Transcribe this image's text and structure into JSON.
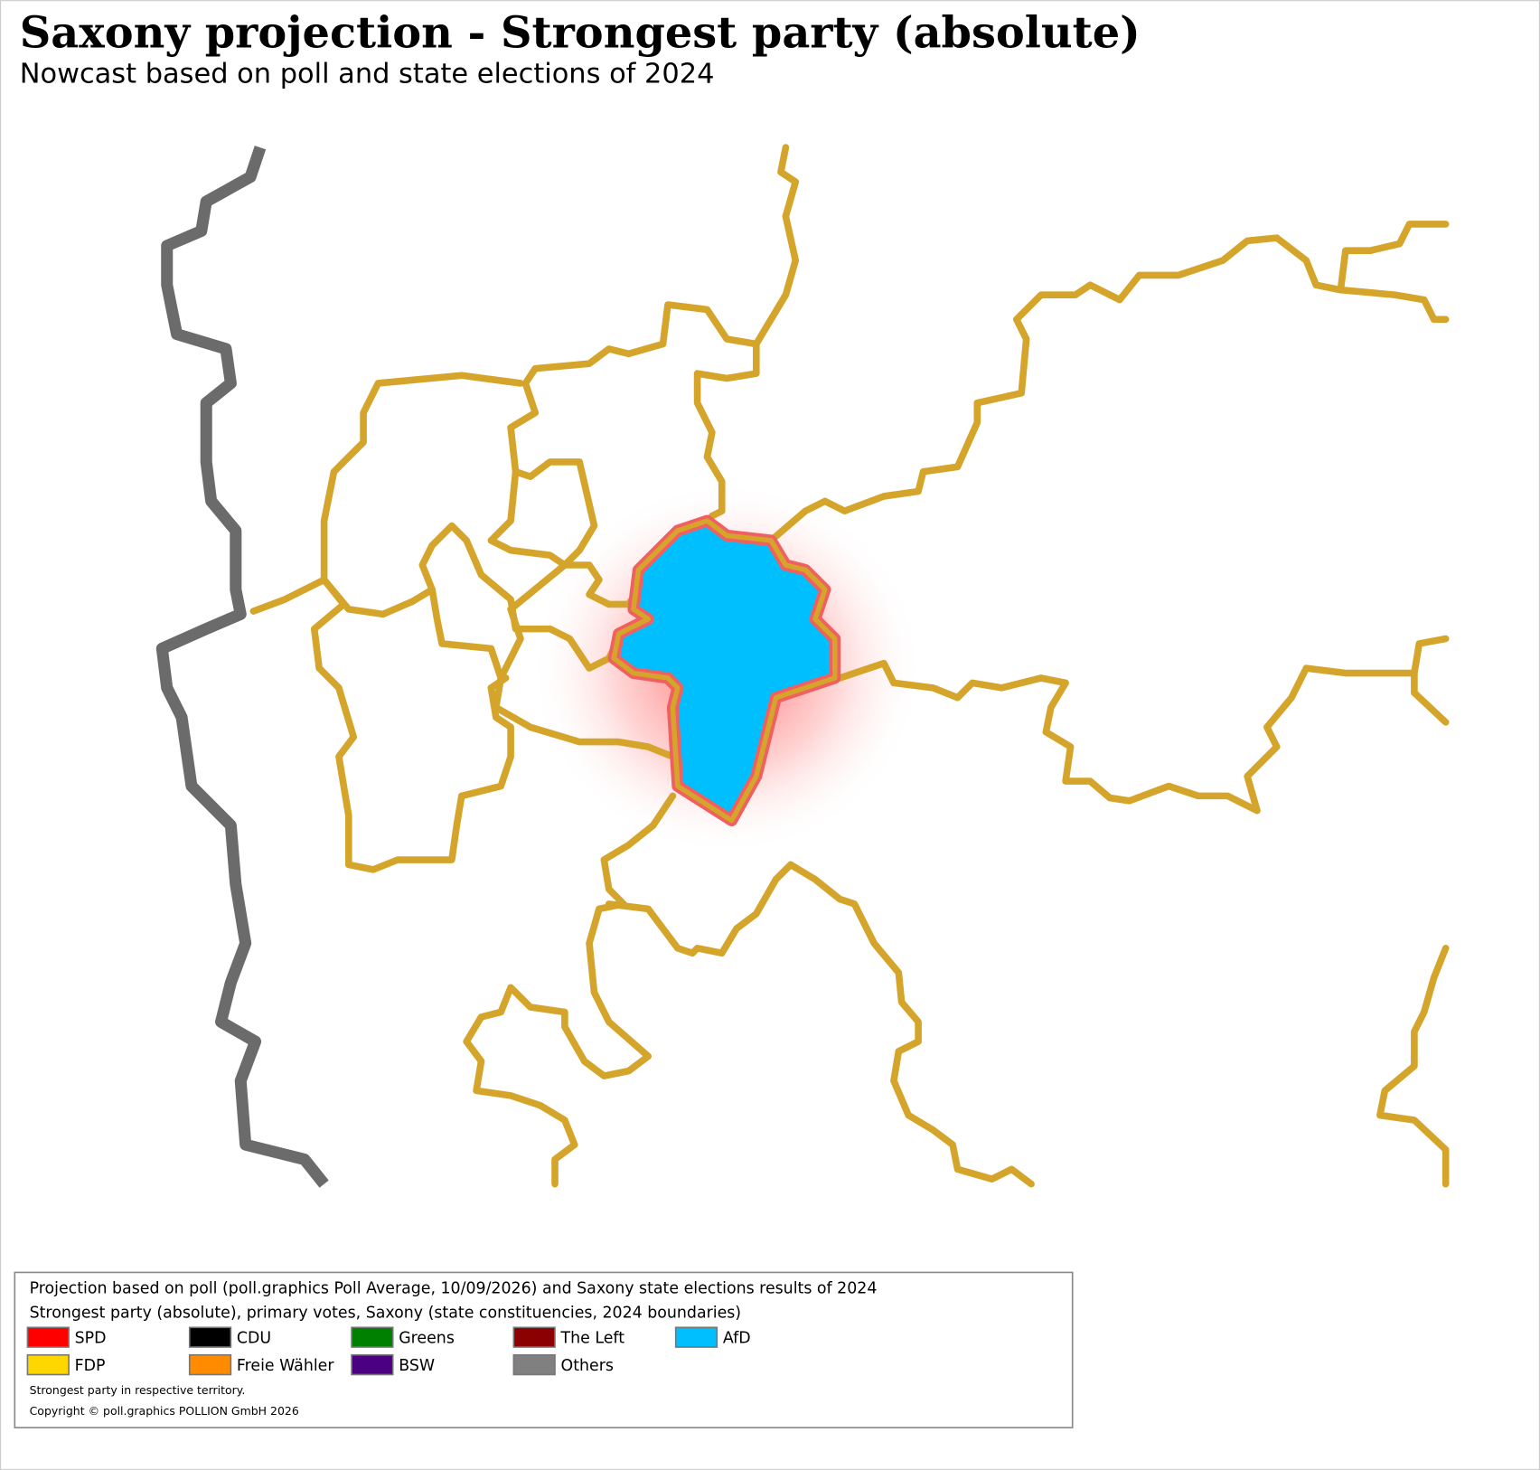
{
  "header": {
    "title": "Saxony projection - Strongest party (absolute)",
    "subtitle": "Nowcast based on poll and state elections of 2024"
  },
  "legend": {
    "heading_lines": [
      "Projection based on poll (poll.graphics Poll Average, 10/09/2026) and Saxony state elections results of 2024",
      "Strongest party (absolute), primary votes, Saxony (state constituencies, 2024 boundaries)"
    ],
    "items": [
      {
        "name": "SPD",
        "color": "#ff0000"
      },
      {
        "name": "CDU",
        "color": "#000000"
      },
      {
        "name": "Greens",
        "color": "#008000"
      },
      {
        "name": "The Left",
        "color": "#8b0000"
      },
      {
        "name": "AfD",
        "color": "#00bfff"
      },
      {
        "name": "FDP",
        "color": "#ffd700"
      },
      {
        "name": "Freie Wähler",
        "color": "#ff8c00"
      },
      {
        "name": "BSW",
        "color": "#4b0082"
      },
      {
        "name": "Others",
        "color": "#808080"
      }
    ],
    "notes": [
      "Strongest party in respective territory.",
      "Copyright © poll.graphics POLLION GmbH 2026"
    ]
  }
}
